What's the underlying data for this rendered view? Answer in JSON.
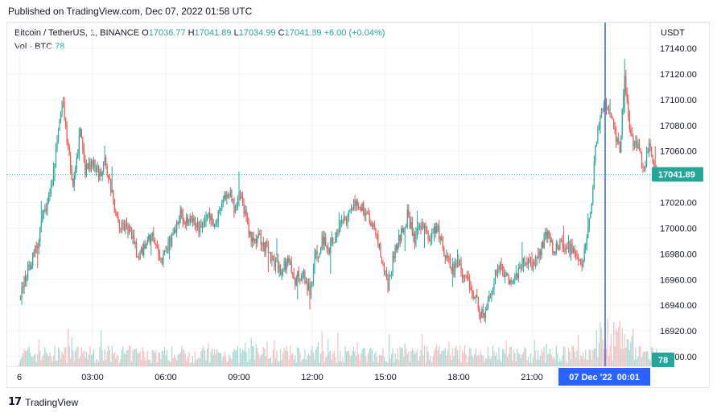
{
  "published_text": "Published on TradingView.com, Dec 07, 2022 01:58 UTC",
  "legend": {
    "symbol": "Bitcoin / TetherUS, 1, BINANCE",
    "o_label": "O",
    "o_value": "17036.77",
    "h_label": "H",
    "h_value": "17041.89",
    "l_label": "L",
    "l_value": "17034.99",
    "c_label": "C",
    "c_value": "17041.89",
    "change": "+6.00 (+0.04%)",
    "vol_label": "Vol · BTC",
    "vol_value": "78"
  },
  "currency": "USDT",
  "footer": {
    "brand": "TradingView"
  },
  "colors": {
    "up": "#26a69a",
    "down": "#ef5350",
    "crosshair": "#2962ff",
    "vol_up": "#7fc9c1",
    "vol_down": "#f4a3a2"
  },
  "chart_data": {
    "type": "candlestick",
    "symbol": "BTCUSDT",
    "interval": "1m",
    "exchange": "BINANCE",
    "y_ticks": [
      17140,
      17120,
      17100,
      17080,
      17060,
      17040,
      17020,
      17000,
      16980,
      16960,
      16940,
      16920,
      16900
    ],
    "y_tick_labels": [
      "17140.00",
      "17120.00",
      "17100.00",
      "17080.00",
      "17060.00",
      "17040.00",
      "17020.00",
      "17000.00",
      "16980.00",
      "16960.00",
      "16940.00",
      "16920.00",
      "16900.00"
    ],
    "ylim": [
      16892,
      17150
    ],
    "x_tick_labels": [
      "6",
      "03:00",
      "06:00",
      "09:00",
      "12:00",
      "15:00",
      "18:00",
      "21:00",
      "07 Dec '22  00:01"
    ],
    "x_tick_hours": [
      0,
      3,
      6,
      9,
      12,
      15,
      18,
      21,
      24
    ],
    "last_price": 17041.89,
    "last_price_label": "17041.89",
    "last_volume": 78,
    "last_volume_label": "78",
    "crosshair_time": "07 Dec '22  00:01",
    "price_path": [
      {
        "h": 0.0,
        "p": 16945
      },
      {
        "h": 0.3,
        "p": 16965
      },
      {
        "h": 0.7,
        "p": 16985
      },
      {
        "h": 1.0,
        "p": 17010
      },
      {
        "h": 1.3,
        "p": 17030
      },
      {
        "h": 1.5,
        "p": 17060
      },
      {
        "h": 1.7,
        "p": 17090
      },
      {
        "h": 1.8,
        "p": 17100
      },
      {
        "h": 2.0,
        "p": 17060
      },
      {
        "h": 2.2,
        "p": 17030
      },
      {
        "h": 2.4,
        "p": 17060
      },
      {
        "h": 2.5,
        "p": 17075
      },
      {
        "h": 2.7,
        "p": 17045
      },
      {
        "h": 3.0,
        "p": 17050
      },
      {
        "h": 3.3,
        "p": 17040
      },
      {
        "h": 3.5,
        "p": 17055
      },
      {
        "h": 3.8,
        "p": 17025
      },
      {
        "h": 4.1,
        "p": 17005
      },
      {
        "h": 4.6,
        "p": 16995
      },
      {
        "h": 4.9,
        "p": 16975
      },
      {
        "h": 5.2,
        "p": 16990
      },
      {
        "h": 5.5,
        "p": 16995
      },
      {
        "h": 5.8,
        "p": 16975
      },
      {
        "h": 6.2,
        "p": 16990
      },
      {
        "h": 6.6,
        "p": 17010
      },
      {
        "h": 7.0,
        "p": 17005
      },
      {
        "h": 7.4,
        "p": 17000
      },
      {
        "h": 7.7,
        "p": 17010
      },
      {
        "h": 8.0,
        "p": 17002
      },
      {
        "h": 8.3,
        "p": 17020
      },
      {
        "h": 8.6,
        "p": 17030
      },
      {
        "h": 8.8,
        "p": 17015
      },
      {
        "h": 9.0,
        "p": 17030
      },
      {
        "h": 9.2,
        "p": 17015
      },
      {
        "h": 9.5,
        "p": 16990
      },
      {
        "h": 9.8,
        "p": 16995
      },
      {
        "h": 10.1,
        "p": 16985
      },
      {
        "h": 10.4,
        "p": 16975
      },
      {
        "h": 10.7,
        "p": 16968
      },
      {
        "h": 11.0,
        "p": 16975
      },
      {
        "h": 11.3,
        "p": 16960
      },
      {
        "h": 11.6,
        "p": 16965
      },
      {
        "h": 11.9,
        "p": 16950
      },
      {
        "h": 12.1,
        "p": 16975
      },
      {
        "h": 12.4,
        "p": 16990
      },
      {
        "h": 12.7,
        "p": 16985
      },
      {
        "h": 13.0,
        "p": 16995
      },
      {
        "h": 13.3,
        "p": 17005
      },
      {
        "h": 13.6,
        "p": 17015
      },
      {
        "h": 13.9,
        "p": 17020
      },
      {
        "h": 14.2,
        "p": 17012
      },
      {
        "h": 14.5,
        "p": 17000
      },
      {
        "h": 14.7,
        "p": 16990
      },
      {
        "h": 14.9,
        "p": 16970
      },
      {
        "h": 15.1,
        "p": 16955
      },
      {
        "h": 15.3,
        "p": 16975
      },
      {
        "h": 15.6,
        "p": 16995
      },
      {
        "h": 15.9,
        "p": 17010
      },
      {
        "h": 16.2,
        "p": 16990
      },
      {
        "h": 16.5,
        "p": 17005
      },
      {
        "h": 16.8,
        "p": 16990
      },
      {
        "h": 17.1,
        "p": 17002
      },
      {
        "h": 17.4,
        "p": 16980
      },
      {
        "h": 17.7,
        "p": 16968
      },
      {
        "h": 18.0,
        "p": 16970
      },
      {
        "h": 18.3,
        "p": 16962
      },
      {
        "h": 18.6,
        "p": 16950
      },
      {
        "h": 18.8,
        "p": 16940
      },
      {
        "h": 19.0,
        "p": 16930
      },
      {
        "h": 19.3,
        "p": 16950
      },
      {
        "h": 19.6,
        "p": 16970
      },
      {
        "h": 19.9,
        "p": 16965
      },
      {
        "h": 20.2,
        "p": 16955
      },
      {
        "h": 20.5,
        "p": 16970
      },
      {
        "h": 20.8,
        "p": 16975
      },
      {
        "h": 21.1,
        "p": 16968
      },
      {
        "h": 21.4,
        "p": 16985
      },
      {
        "h": 21.6,
        "p": 16995
      },
      {
        "h": 21.9,
        "p": 16985
      },
      {
        "h": 22.2,
        "p": 16988
      },
      {
        "h": 22.5,
        "p": 16985
      },
      {
        "h": 22.8,
        "p": 16980
      },
      {
        "h": 23.0,
        "p": 16968
      },
      {
        "h": 23.2,
        "p": 16985
      },
      {
        "h": 23.4,
        "p": 17010
      },
      {
        "h": 23.6,
        "p": 17060
      },
      {
        "h": 23.8,
        "p": 17090
      },
      {
        "h": 24.0,
        "p": 17100
      },
      {
        "h": 24.2,
        "p": 17090
      },
      {
        "h": 24.4,
        "p": 17075
      },
      {
        "h": 24.6,
        "p": 17060
      },
      {
        "h": 24.8,
        "p": 17120
      },
      {
        "h": 25.0,
        "p": 17080
      },
      {
        "h": 25.2,
        "p": 17065
      },
      {
        "h": 25.4,
        "p": 17060
      },
      {
        "h": 25.6,
        "p": 17045
      },
      {
        "h": 25.8,
        "p": 17065
      },
      {
        "h": 26.0,
        "p": 17045
      },
      {
        "h": 26.15,
        "p": 17041.89
      }
    ]
  }
}
